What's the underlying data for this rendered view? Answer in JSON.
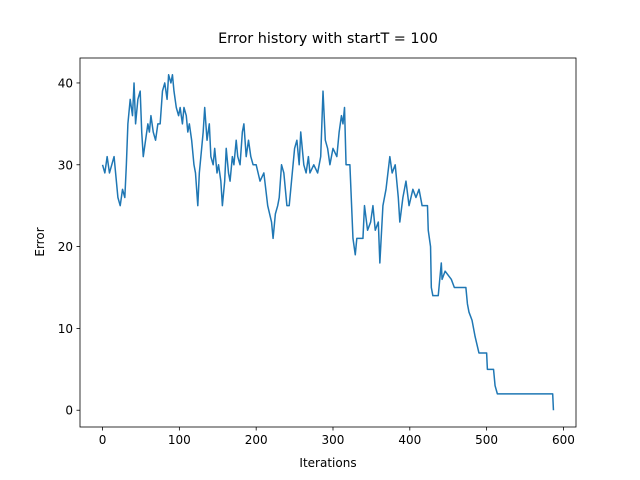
{
  "chart_data": {
    "type": "line",
    "title": "Error history with startT = 100",
    "xlabel": "Iterations",
    "ylabel": "Error",
    "xlim": [
      -29.35,
      616.35
    ],
    "ylim": [
      -2.05,
      43.05
    ],
    "xticks": [
      0,
      100,
      200,
      300,
      400,
      500,
      600
    ],
    "yticks": [
      0,
      10,
      20,
      30,
      40
    ],
    "series": [
      {
        "name": "Error",
        "color": "#1f77b4",
        "x": [
          0,
          3,
          6,
          9,
          12,
          15,
          17,
          20,
          23,
          26,
          29,
          31,
          33,
          36,
          39,
          41,
          43,
          46,
          49,
          51,
          53,
          56,
          59,
          61,
          63,
          66,
          69,
          72,
          75,
          78,
          81,
          84,
          86,
          89,
          91,
          93,
          96,
          99,
          101,
          104,
          106,
          109,
          111,
          113,
          116,
          119,
          121,
          124,
          126,
          129,
          131,
          133,
          136,
          139,
          141,
          144,
          146,
          149,
          151,
          154,
          156,
          159,
          161,
          164,
          166,
          169,
          171,
          174,
          176,
          179,
          182,
          184,
          187,
          190,
          193,
          196,
          200,
          205,
          210,
          215,
          220,
          222,
          225,
          228,
          230,
          233,
          236,
          240,
          243,
          246,
          250,
          253,
          256,
          258,
          262,
          265,
          268,
          270,
          275,
          280,
          284,
          287,
          290,
          293,
          296,
          300,
          305,
          308,
          311,
          313,
          315,
          317,
          322,
          326,
          329,
          331,
          339,
          341,
          345,
          349,
          352,
          355,
          359,
          361,
          365,
          369,
          374,
          377,
          381,
          385,
          387,
          391,
          395,
          399,
          404,
          408,
          412,
          416,
          423,
          424,
          427,
          428,
          430,
          437,
          439,
          441,
          442,
          446,
          454,
          458,
          473,
          475,
          477,
          481,
          485,
          490,
          500,
          501,
          509,
          511,
          514,
          586,
          587
        ],
        "values": [
          30,
          29,
          31,
          29,
          30,
          31,
          29,
          26,
          25,
          27,
          26,
          30,
          35,
          38,
          36,
          40,
          35,
          38,
          39,
          34,
          31,
          33,
          35,
          34,
          36,
          34,
          33,
          35,
          35,
          39,
          40,
          38,
          41,
          40,
          41,
          39,
          37,
          36,
          37,
          35,
          37,
          36,
          34,
          35,
          33,
          30,
          29,
          25,
          29,
          32,
          34,
          37,
          33,
          35,
          31,
          30,
          32,
          29,
          30,
          28,
          25,
          28,
          32,
          29,
          28,
          31,
          30,
          33,
          31,
          30,
          34,
          35,
          31,
          33,
          31,
          30,
          30,
          28,
          29,
          25,
          23,
          21,
          24,
          25,
          26,
          30,
          29,
          25,
          25,
          28,
          32,
          33,
          30,
          34,
          30,
          29,
          31,
          29,
          30,
          29,
          31,
          39,
          33,
          32,
          30,
          32,
          31,
          34,
          36,
          35,
          37,
          30,
          30,
          21,
          19,
          21,
          21,
          25,
          22,
          23,
          25,
          22,
          23,
          18,
          25,
          27,
          31,
          29,
          30,
          26,
          23,
          26,
          28,
          25,
          27,
          26,
          27,
          25,
          25,
          22,
          20,
          15,
          14,
          14,
          16,
          18,
          16,
          17,
          16,
          15,
          15,
          13,
          12,
          11,
          9,
          7,
          7,
          5,
          5,
          3,
          2,
          2,
          0
        ]
      }
    ]
  }
}
